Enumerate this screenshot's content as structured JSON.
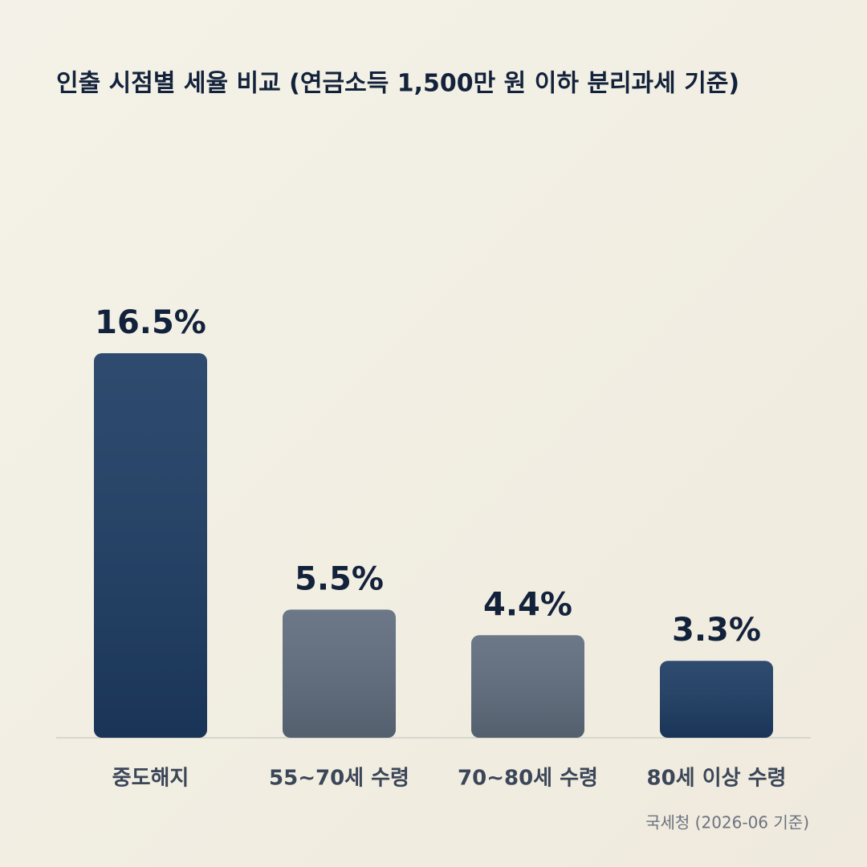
{
  "chart_data": {
    "type": "bar",
    "title": "인출 시점별 세율 비교 (연금소득 1,500만 원 이하 분리과세 기준)",
    "categories": [
      "중도해지",
      "55~70세 수령",
      "70~80세 수령",
      "80세 이상 수령"
    ],
    "values": [
      16.5,
      5.5,
      4.4,
      3.3
    ],
    "value_labels": [
      "16.5%",
      "5.5%",
      "4.4%",
      "3.3%"
    ],
    "colors": [
      "#1c3b62",
      "#5f6c7d",
      "#5f6c7d",
      "#1c3b62"
    ],
    "source": "국세청 (2026-06 기준)"
  }
}
